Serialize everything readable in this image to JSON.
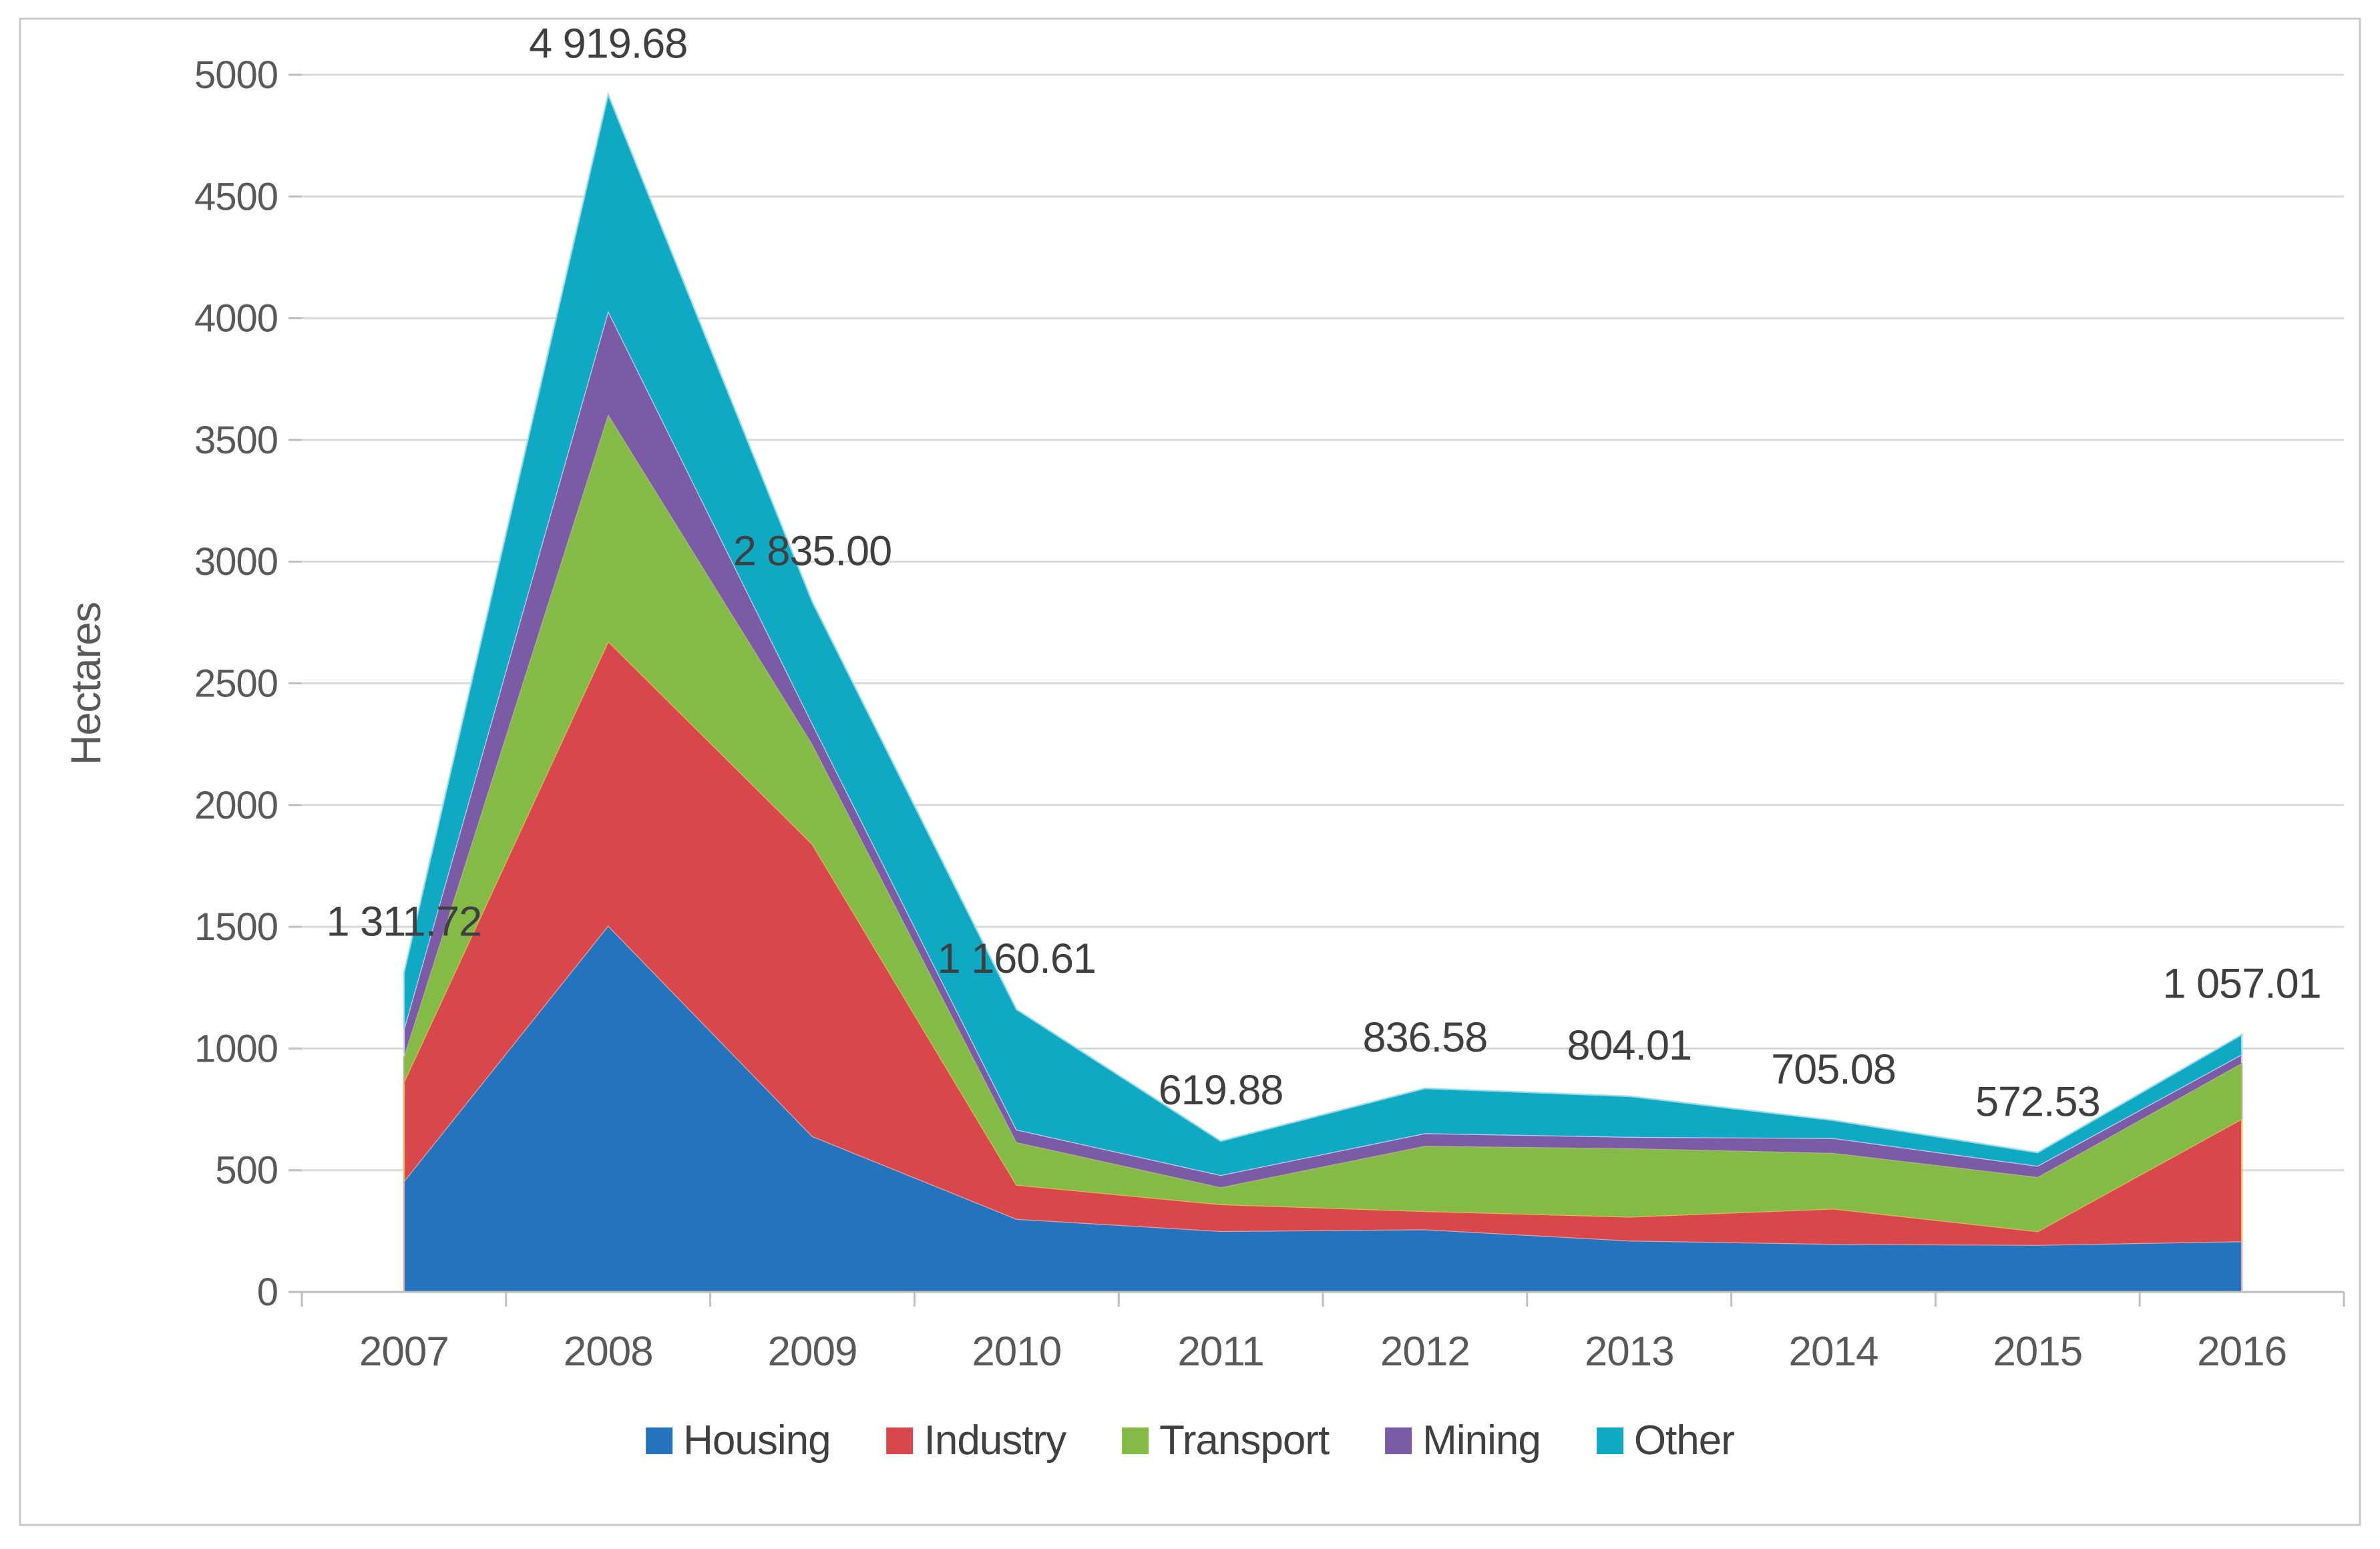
{
  "chart_data": {
    "type": "area",
    "stacked": true,
    "title": "",
    "grid": true,
    "legend_position": "bottom",
    "y_axis": {
      "title": "Hectares",
      "min": 0,
      "max": 5000,
      "tick_step": 500,
      "tick_labels": [
        "0",
        "500",
        "1000",
        "1500",
        "2000",
        "2500",
        "3000",
        "3500",
        "4000",
        "4500",
        "5000"
      ]
    },
    "x_axis": {
      "categories": [
        "2007",
        "2008",
        "2009",
        "2010",
        "2011",
        "2012",
        "2013",
        "2014",
        "2015",
        "2016"
      ]
    },
    "series": [
      {
        "name": "Housing",
        "color": "#2374BC",
        "edge": "#ECA8AB",
        "values": [
          455,
          1505,
          640,
          300,
          250,
          257,
          211,
          197,
          193,
          208
        ]
      },
      {
        "name": "Industry",
        "color": "#D8474B",
        "edge": "#E3C05B",
        "values": [
          408,
          1168,
          1200,
          140,
          110,
          75,
          98,
          145,
          56,
          503
        ]
      },
      {
        "name": "Transport",
        "color": "#84BB46",
        "edge": "#B3B388",
        "values": [
          105,
          932,
          410,
          175,
          70,
          268,
          281,
          229,
          223,
          229
        ]
      },
      {
        "name": "Mining",
        "color": "#7B5BA6",
        "edge": "#CBD9F1",
        "values": [
          112,
          425,
          85,
          52,
          50,
          52,
          47,
          61,
          46,
          36
        ]
      },
      {
        "name": "Other",
        "color": "#10A9C4",
        "edge": "#9FDBE9",
        "values": [
          231.72,
          889.68,
          500,
          493.61,
          139.88,
          184.58,
          167.01,
          73.08,
          54.53,
          81.01
        ]
      }
    ],
    "totals": [
      1311.72,
      4919.68,
      2835.0,
      1160.61,
      619.88,
      836.58,
      804.01,
      705.08,
      572.53,
      1057.01
    ],
    "total_labels": [
      "1 311.72",
      "4 919.68",
      "2 835.00",
      "1 160.61",
      "619.88",
      "836.58",
      "804.01",
      "705.08",
      "572.53",
      "1 057.01"
    ]
  },
  "style": {
    "background": "#ffffff",
    "figure_border": "#C9C9C9",
    "gridline": "#D9D9D9",
    "axis_line": "#BFBFBF",
    "tick_text": "#595959",
    "axis_title_text": "#595959",
    "data_label_text": "#3F3F3F",
    "legend_text": "#404040"
  }
}
